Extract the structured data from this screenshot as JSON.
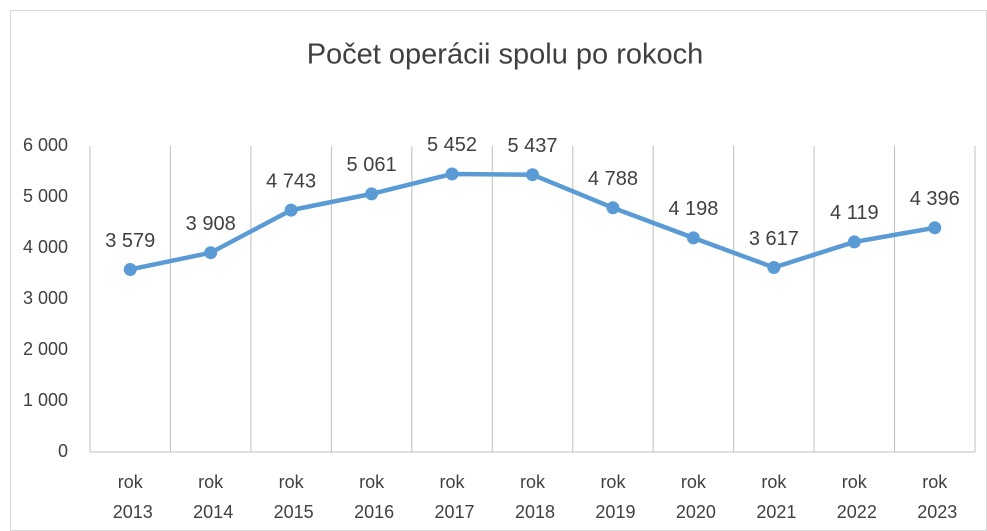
{
  "chart_data": {
    "type": "line",
    "title": "Počet operácii spolu po rokoch",
    "categories": [
      "rok 2013",
      "rok 2014",
      "rok 2015",
      "rok 2016",
      "rok 2017",
      "rok 2018",
      "rok 2019",
      "rok 2020",
      "rok 2021",
      "rok 2022",
      "rok 2023"
    ],
    "series": [
      {
        "name": "Počet operácii",
        "color": "#5b9bd5",
        "values": [
          3579,
          3908,
          4743,
          5061,
          5452,
          5437,
          4788,
          4198,
          3617,
          4119,
          4396
        ],
        "value_labels": [
          "3 579",
          "3 908",
          "4 743",
          "5 061",
          "5 452",
          "5 437",
          "4 788",
          "4 198",
          "3 617",
          "4 119",
          "4 396"
        ]
      }
    ],
    "ylim": [
      0,
      6000
    ],
    "yticks": [
      0,
      {
        "value": 1000,
        "label": "1 000"
      },
      {
        "value": 2000,
        "label": "2 000"
      },
      {
        "value": 3000,
        "label": "3 000"
      },
      {
        "value": 4000,
        "label": "4 000"
      },
      {
        "value": 5000,
        "label": "5 000"
      },
      {
        "value": 6000,
        "label": "6 000"
      }
    ],
    "category_grid": true
  }
}
